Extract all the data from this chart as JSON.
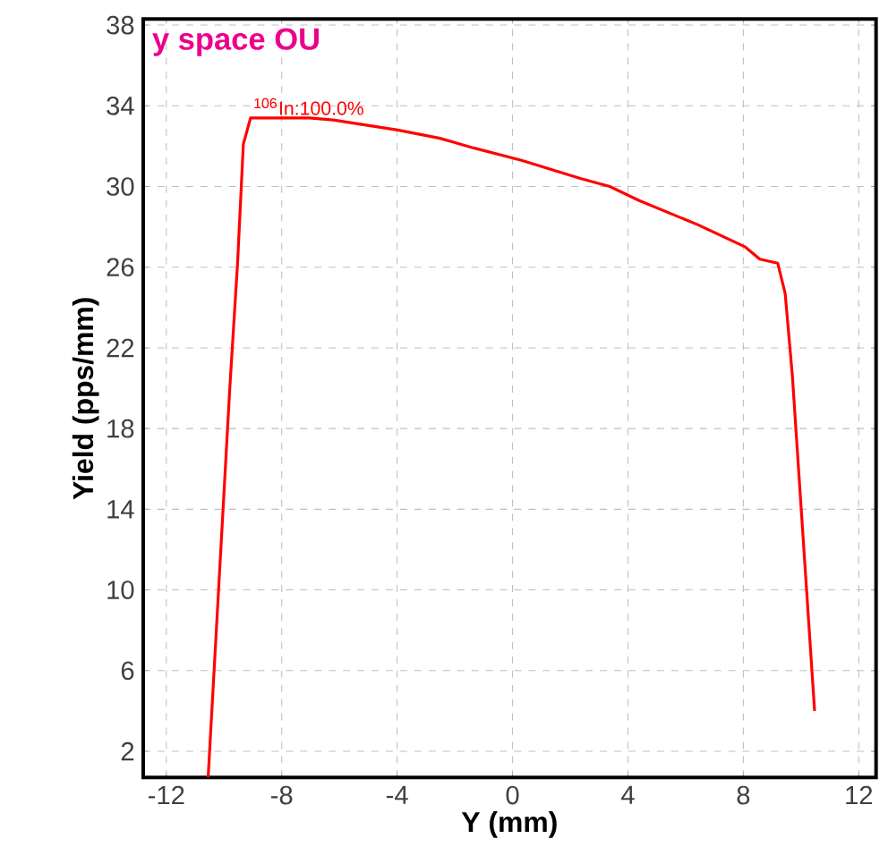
{
  "chart_data": {
    "type": "line",
    "xlabel": "Y (mm)",
    "ylabel": "Yield (pps/mm)",
    "x": [
      -10.55,
      -9.8,
      -9.53,
      -9.33,
      -9.08,
      -7.04,
      -6.22,
      -3.98,
      -2.55,
      -1.32,
      0.31,
      2.35,
      3.37,
      4.39,
      6.43,
      8.07,
      8.57,
      9.19,
      9.45,
      9.7,
      10.47
    ],
    "series": [
      {
        "color": "#ff0000",
        "values": [
          0.7,
          20.0,
          26.2,
          32.1,
          33.4,
          33.4,
          33.3,
          32.8,
          32.4,
          31.9,
          31.3,
          30.4,
          30.0,
          29.3,
          28.1,
          27.0,
          26.4,
          26.2,
          24.7,
          20.6,
          4.0
        ]
      }
    ],
    "xlim": [
      -12.8,
      12.6
    ],
    "ylim": [
      0.7,
      38.3
    ],
    "xticks": [
      -12,
      -8,
      -4,
      0,
      4,
      8,
      12
    ],
    "yticks": [
      2,
      6,
      10,
      14,
      18,
      22,
      26,
      30,
      34,
      38
    ],
    "grid": true,
    "marker": "none",
    "line_style": "solid",
    "annotations": [
      "y space OU",
      {
        "text": "$^{106}$In:100.0%",
        "x": -9.08,
        "y": 33.4
      }
    ]
  }
}
